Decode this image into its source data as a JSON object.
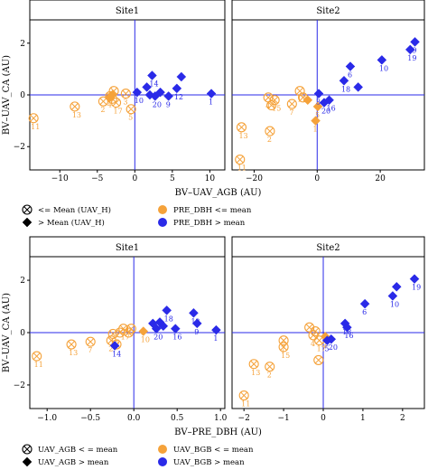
{
  "colors": {
    "orange": "#F5A23A",
    "blue": "#2A2AE8",
    "refline": "#2A2AE8",
    "frame": "#000000",
    "strip": "#ffffff"
  },
  "chart_data": [
    {
      "type": "scatter",
      "title": "",
      "xlabel": "BV–UAV_AGB (AU)",
      "ylabel": "BV–UAV_CA (AU)",
      "ylim": [
        -2.9,
        2.9
      ],
      "yticks": [
        -2,
        0,
        2
      ],
      "ytick_labels": [
        "−2",
        "0",
        "2"
      ],
      "reflines": {
        "x": 0,
        "y": 0
      },
      "panels": [
        {
          "strip": "Site1",
          "xlim": [
            -14,
            12
          ],
          "xticks": [
            -10,
            -5,
            0,
            5,
            10
          ],
          "xtick_labels": [
            "−10",
            "−5",
            "0",
            "5",
            "10"
          ],
          "points": [
            {
              "x": -13.5,
              "y": -0.9,
              "shape": "circlex",
              "color": "orange",
              "label": "11"
            },
            {
              "x": -8.0,
              "y": -0.45,
              "shape": "circlex",
              "color": "orange",
              "label": "13"
            },
            {
              "x": -4.2,
              "y": -0.25,
              "shape": "circlex",
              "color": "orange",
              "label": "2"
            },
            {
              "x": -3.3,
              "y": -0.05,
              "shape": "circlex",
              "color": "orange",
              "label": "4"
            },
            {
              "x": -3.0,
              "y": -0.15,
              "shape": "circlex",
              "color": "orange",
              "label": ""
            },
            {
              "x": -2.8,
              "y": 0.15,
              "shape": "circlex",
              "color": "orange",
              "label": ""
            },
            {
              "x": -2.5,
              "y": -0.3,
              "shape": "circlex",
              "color": "orange",
              "label": "17"
            },
            {
              "x": -1.2,
              "y": 0.05,
              "shape": "circlex",
              "color": "orange",
              "label": "3"
            },
            {
              "x": -0.5,
              "y": -0.55,
              "shape": "circlex",
              "color": "orange",
              "label": "5"
            },
            {
              "x": -3.0,
              "y": 0.0,
              "shape": "diamond",
              "color": "orange",
              "label": ""
            },
            {
              "x": -3.4,
              "y": -0.1,
              "shape": "diamond",
              "color": "orange",
              "label": ""
            },
            {
              "x": 0.3,
              "y": 0.1,
              "shape": "diamond",
              "color": "blue",
              "label": "10"
            },
            {
              "x": 1.6,
              "y": 0.3,
              "shape": "diamond",
              "color": "blue",
              "label": ""
            },
            {
              "x": 2.3,
              "y": 0.75,
              "shape": "diamond",
              "color": "blue",
              "label": "14"
            },
            {
              "x": 2.0,
              "y": 0.0,
              "shape": "diamond",
              "color": "blue",
              "label": ""
            },
            {
              "x": 2.7,
              "y": -0.05,
              "shape": "diamond",
              "color": "blue",
              "label": "20"
            },
            {
              "x": 3.4,
              "y": 0.1,
              "shape": "diamond",
              "color": "blue",
              "label": ""
            },
            {
              "x": 4.5,
              "y": -0.05,
              "shape": "diamond",
              "color": "blue",
              "label": "9"
            },
            {
              "x": 5.6,
              "y": 0.25,
              "shape": "diamond",
              "color": "blue",
              "label": "12"
            },
            {
              "x": 6.2,
              "y": 0.7,
              "shape": "diamond",
              "color": "blue",
              "label": ""
            },
            {
              "x": 10.2,
              "y": 0.05,
              "shape": "diamond",
              "color": "blue",
              "label": "1"
            }
          ]
        },
        {
          "strip": "Site2",
          "xlim": [
            -27,
            34
          ],
          "xticks": [
            -20,
            0,
            20
          ],
          "xtick_labels": [
            "−20",
            "0",
            "20"
          ],
          "points": [
            {
              "x": -24.5,
              "y": -2.5,
              "shape": "circlex",
              "color": "orange",
              "label": "11"
            },
            {
              "x": -24.0,
              "y": -1.25,
              "shape": "circlex",
              "color": "orange",
              "label": "13"
            },
            {
              "x": -15.0,
              "y": -1.4,
              "shape": "circlex",
              "color": "orange",
              "label": "2"
            },
            {
              "x": -15.5,
              "y": -0.1,
              "shape": "circlex",
              "color": "orange",
              "label": "4"
            },
            {
              "x": -14.5,
              "y": -0.4,
              "shape": "circlex",
              "color": "orange",
              "label": ""
            },
            {
              "x": -13.5,
              "y": -0.2,
              "shape": "circlex",
              "color": "orange",
              "label": "15"
            },
            {
              "x": -8.0,
              "y": -0.35,
              "shape": "circlex",
              "color": "orange",
              "label": "7"
            },
            {
              "x": -5.5,
              "y": 0.15,
              "shape": "circlex",
              "color": "orange",
              "label": "17"
            },
            {
              "x": -4.5,
              "y": -0.1,
              "shape": "circlex",
              "color": "orange",
              "label": ""
            },
            {
              "x": -3.0,
              "y": -0.2,
              "shape": "diamond",
              "color": "orange",
              "label": ""
            },
            {
              "x": 0.2,
              "y": -0.45,
              "shape": "diamond",
              "color": "orange",
              "label": "5"
            },
            {
              "x": -0.5,
              "y": -1.0,
              "shape": "diamond",
              "color": "orange",
              "label": "1"
            },
            {
              "x": 0.5,
              "y": 0.05,
              "shape": "diamond",
              "color": "blue",
              "label": "3"
            },
            {
              "x": 2.2,
              "y": -0.3,
              "shape": "diamond",
              "color": "blue",
              "label": "20"
            },
            {
              "x": 3.8,
              "y": -0.2,
              "shape": "diamond",
              "color": "blue",
              "label": "16"
            },
            {
              "x": 8.5,
              "y": 0.55,
              "shape": "diamond",
              "color": "blue",
              "label": "18"
            },
            {
              "x": 10.5,
              "y": 1.1,
              "shape": "diamond",
              "color": "blue",
              "label": "6"
            },
            {
              "x": 13.0,
              "y": 0.3,
              "shape": "diamond",
              "color": "blue",
              "label": ""
            },
            {
              "x": 20.5,
              "y": 1.35,
              "shape": "diamond",
              "color": "blue",
              "label": "10"
            },
            {
              "x": 29.5,
              "y": 1.75,
              "shape": "diamond",
              "color": "blue",
              "label": "19"
            },
            {
              "x": 31.0,
              "y": 2.05,
              "shape": "diamond",
              "color": "blue",
              "label": "9"
            }
          ]
        }
      ],
      "legend": [
        {
          "shape": "circlex",
          "color": "black",
          "text": "<= Mean (UAV_H)"
        },
        {
          "shape": "circle",
          "color": "orange",
          "text": "PRE_DBH <= mean"
        },
        {
          "shape": "diamond",
          "color": "black",
          "text": "> Mean (UAV_H)"
        },
        {
          "shape": "circle",
          "color": "blue",
          "text": "PRE_DBH > mean"
        }
      ]
    },
    {
      "type": "scatter",
      "title": "",
      "xlabel": "BV–PRE_DBH (AU)",
      "ylabel": "BV–UAV_CA (AU)",
      "ylim": [
        -2.9,
        2.9
      ],
      "yticks": [
        -2,
        0,
        2
      ],
      "ytick_labels": [
        "−2",
        "0",
        "2"
      ],
      "reflines": {
        "x": 0,
        "y": 0
      },
      "panels": [
        {
          "strip": "Site1",
          "xlim": [
            -1.2,
            1.05
          ],
          "xticks": [
            -1.0,
            -0.5,
            0.0,
            0.5,
            1.0
          ],
          "xtick_labels": [
            "−1.0",
            "−0.5",
            "0.0",
            "0.5",
            "1.0"
          ],
          "points": [
            {
              "x": -1.12,
              "y": -0.9,
              "shape": "circlex",
              "color": "orange",
              "label": "11"
            },
            {
              "x": -0.72,
              "y": -0.45,
              "shape": "circlex",
              "color": "orange",
              "label": "13"
            },
            {
              "x": -0.5,
              "y": -0.35,
              "shape": "circlex",
              "color": "orange",
              "label": "7"
            },
            {
              "x": -0.26,
              "y": -0.3,
              "shape": "circlex",
              "color": "orange",
              "label": "2"
            },
            {
              "x": -0.24,
              "y": -0.05,
              "shape": "circlex",
              "color": "orange",
              "label": "15"
            },
            {
              "x": -0.2,
              "y": -0.45,
              "shape": "circlex",
              "color": "orange",
              "label": ""
            },
            {
              "x": -0.16,
              "y": 0.0,
              "shape": "circlex",
              "color": "orange",
              "label": ""
            },
            {
              "x": -0.12,
              "y": 0.15,
              "shape": "circlex",
              "color": "orange",
              "label": "17"
            },
            {
              "x": -0.06,
              "y": 0.0,
              "shape": "circlex",
              "color": "orange",
              "label": ""
            },
            {
              "x": -0.03,
              "y": 0.15,
              "shape": "circlex",
              "color": "orange",
              "label": ""
            },
            {
              "x": -0.22,
              "y": -0.5,
              "shape": "diamond",
              "color": "blue",
              "label": "14"
            },
            {
              "x": 0.11,
              "y": 0.05,
              "shape": "diamond",
              "color": "orange",
              "label": "10"
            },
            {
              "x": 0.22,
              "y": 0.35,
              "shape": "diamond",
              "color": "blue",
              "label": ""
            },
            {
              "x": 0.26,
              "y": 0.15,
              "shape": "diamond",
              "color": "blue",
              "label": "20"
            },
            {
              "x": 0.3,
              "y": 0.4,
              "shape": "diamond",
              "color": "blue",
              "label": ""
            },
            {
              "x": 0.34,
              "y": 0.25,
              "shape": "diamond",
              "color": "blue",
              "label": ""
            },
            {
              "x": 0.38,
              "y": 0.85,
              "shape": "diamond",
              "color": "blue",
              "label": "18"
            },
            {
              "x": 0.48,
              "y": 0.15,
              "shape": "diamond",
              "color": "blue",
              "label": "16"
            },
            {
              "x": 0.69,
              "y": 0.75,
              "shape": "diamond",
              "color": "blue",
              "label": "12"
            },
            {
              "x": 0.73,
              "y": 0.35,
              "shape": "diamond",
              "color": "blue",
              "label": "9"
            },
            {
              "x": 0.95,
              "y": 0.1,
              "shape": "diamond",
              "color": "blue",
              "label": "1"
            }
          ]
        },
        {
          "strip": "Site2",
          "xlim": [
            -2.3,
            2.55
          ],
          "xticks": [
            -2,
            -1,
            0,
            1,
            2
          ],
          "xtick_labels": [
            "−2",
            "−1",
            "0",
            "1",
            "2"
          ],
          "points": [
            {
              "x": -2.0,
              "y": -2.4,
              "shape": "circlex",
              "color": "orange",
              "label": "11"
            },
            {
              "x": -1.75,
              "y": -1.2,
              "shape": "circlex",
              "color": "orange",
              "label": "13"
            },
            {
              "x": -1.35,
              "y": -1.3,
              "shape": "circlex",
              "color": "orange",
              "label": "2"
            },
            {
              "x": -1.0,
              "y": -0.3,
              "shape": "circlex",
              "color": "orange",
              "label": "7"
            },
            {
              "x": -1.0,
              "y": -0.55,
              "shape": "circlex",
              "color": "orange",
              "label": "15"
            },
            {
              "x": -0.35,
              "y": 0.2,
              "shape": "circlex",
              "color": "orange",
              "label": ""
            },
            {
              "x": -0.25,
              "y": -0.1,
              "shape": "circlex",
              "color": "orange",
              "label": "4"
            },
            {
              "x": -0.2,
              "y": 0.05,
              "shape": "circlex",
              "color": "orange",
              "label": ""
            },
            {
              "x": -0.1,
              "y": -0.3,
              "shape": "circlex",
              "color": "orange",
              "label": "17"
            },
            {
              "x": -0.12,
              "y": -1.05,
              "shape": "circlex",
              "color": "orange",
              "label": ""
            },
            {
              "x": 0.05,
              "y": -0.15,
              "shape": "diamond",
              "color": "orange",
              "label": "3"
            },
            {
              "x": 0.1,
              "y": -0.3,
              "shape": "diamond",
              "color": "blue",
              "label": "5"
            },
            {
              "x": 0.2,
              "y": -0.25,
              "shape": "diamond",
              "color": "blue",
              "label": "20"
            },
            {
              "x": 0.55,
              "y": 0.35,
              "shape": "diamond",
              "color": "blue",
              "label": "18"
            },
            {
              "x": 0.6,
              "y": 0.2,
              "shape": "diamond",
              "color": "blue",
              "label": "16"
            },
            {
              "x": 1.05,
              "y": 1.1,
              "shape": "diamond",
              "color": "blue",
              "label": "6"
            },
            {
              "x": 1.75,
              "y": 1.4,
              "shape": "diamond",
              "color": "blue",
              "label": "10"
            },
            {
              "x": 1.85,
              "y": 1.75,
              "shape": "diamond",
              "color": "blue",
              "label": ""
            },
            {
              "x": 2.3,
              "y": 2.05,
              "shape": "diamond",
              "color": "blue",
              "label": "19"
            }
          ]
        }
      ],
      "legend": [
        {
          "shape": "circlex",
          "color": "black",
          "text": "UAV_AGB < = mean"
        },
        {
          "shape": "circle",
          "color": "orange",
          "text": "UAV_BGB < = mean"
        },
        {
          "shape": "diamond",
          "color": "black",
          "text": "UAV_AGB > mean"
        },
        {
          "shape": "circle",
          "color": "blue",
          "text": "UAV_BGB > mean"
        }
      ]
    }
  ]
}
